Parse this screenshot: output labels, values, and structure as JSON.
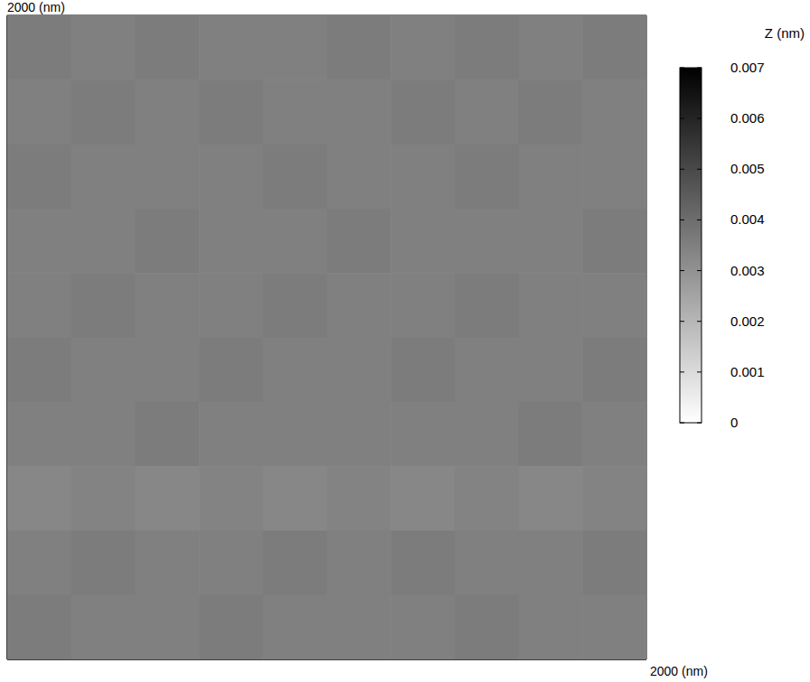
{
  "chart_data": {
    "type": "heatmap",
    "xlim": [
      0,
      2000
    ],
    "ylim": [
      0,
      2000
    ],
    "xticks": [
      {
        "value": 2000,
        "label": "2000 (nm)"
      }
    ],
    "yticks": [
      {
        "value": 2000,
        "label": "2000 (nm)"
      }
    ],
    "x": [
      100,
      300,
      500,
      700,
      900,
      1100,
      1300,
      1500,
      1700,
      1900
    ],
    "y": [
      1900,
      1700,
      1500,
      1300,
      1100,
      900,
      700,
      500,
      300,
      100
    ],
    "z": [
      [
        0.0036,
        0.0035,
        0.0036,
        0.0035,
        0.0035,
        0.0036,
        0.0035,
        0.0036,
        0.0035,
        0.0036
      ],
      [
        0.0035,
        0.0036,
        0.0035,
        0.0036,
        0.0035,
        0.0035,
        0.0036,
        0.0035,
        0.0036,
        0.0035
      ],
      [
        0.0036,
        0.0035,
        0.0035,
        0.0035,
        0.0036,
        0.0035,
        0.0035,
        0.0036,
        0.0035,
        0.0035
      ],
      [
        0.0035,
        0.0035,
        0.0036,
        0.0035,
        0.0035,
        0.0036,
        0.0035,
        0.0035,
        0.0035,
        0.0036
      ],
      [
        0.0035,
        0.0036,
        0.0035,
        0.0035,
        0.0036,
        0.0035,
        0.0035,
        0.0036,
        0.0035,
        0.0035
      ],
      [
        0.0036,
        0.0035,
        0.0035,
        0.0036,
        0.0035,
        0.0035,
        0.0036,
        0.0035,
        0.0035,
        0.0036
      ],
      [
        0.0035,
        0.0035,
        0.0036,
        0.0035,
        0.0035,
        0.0035,
        0.0035,
        0.0035,
        0.0036,
        0.0035
      ],
      [
        0.0033,
        0.0034,
        0.0033,
        0.0034,
        0.0033,
        0.0034,
        0.0033,
        0.0034,
        0.0033,
        0.0034
      ],
      [
        0.0035,
        0.0036,
        0.0035,
        0.0035,
        0.0036,
        0.0035,
        0.0036,
        0.0035,
        0.0035,
        0.0036
      ],
      [
        0.0036,
        0.0035,
        0.0035,
        0.0036,
        0.0035,
        0.0035,
        0.0035,
        0.0036,
        0.0035,
        0.0035
      ]
    ],
    "colorbar": {
      "label": "Z (nm)",
      "range": [
        0,
        0.007
      ],
      "ticks": [
        0,
        0.001,
        0.002,
        0.003,
        0.004,
        0.005,
        0.006,
        0.007
      ]
    }
  }
}
